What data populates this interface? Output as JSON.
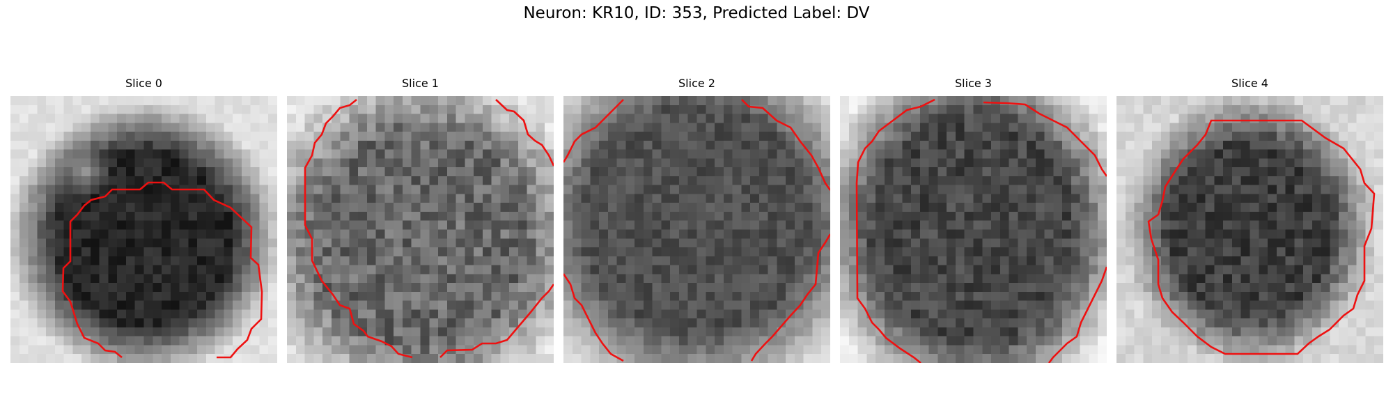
{
  "title": "Neuron: KR10, ID: 353, Predicted Label: DV",
  "panels": [
    {
      "title": "Slice 0"
    },
    {
      "title": "Slice 1"
    },
    {
      "title": "Slice 2"
    },
    {
      "title": "Slice 3"
    },
    {
      "title": "Slice 4"
    }
  ],
  "colors": {
    "contour": "#ee1111",
    "background": "#ffffff",
    "colormap": "gray"
  }
}
